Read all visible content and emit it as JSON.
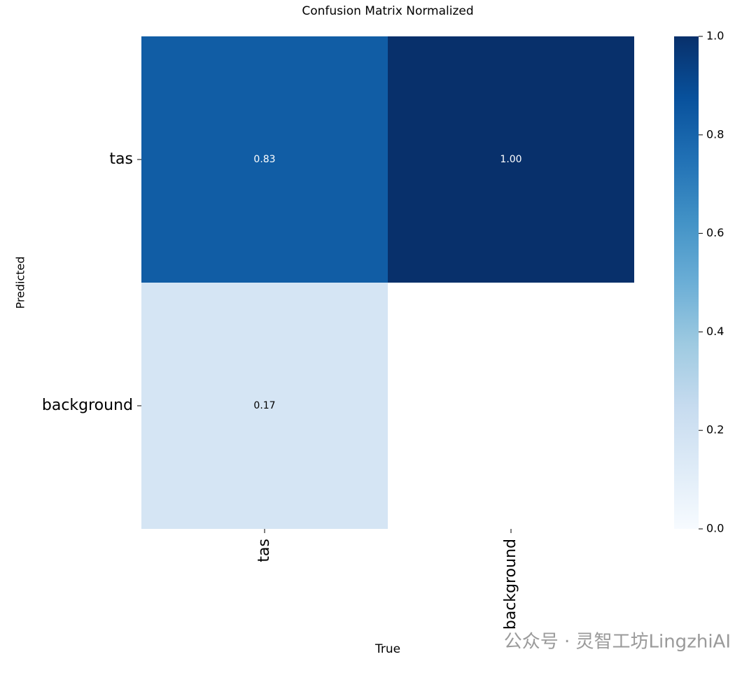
{
  "chart_data": {
    "type": "heatmap",
    "title": "Confusion Matrix Normalized",
    "x_label": "True",
    "y_label": "Predicted",
    "x_categories": [
      "tas",
      "background"
    ],
    "y_categories": [
      "tas",
      "background"
    ],
    "values": [
      [
        0.83,
        1.0
      ],
      [
        0.17,
        null
      ]
    ],
    "value_labels": [
      [
        "0.83",
        "1.00"
      ],
      [
        "0.17",
        null
      ]
    ],
    "colormap": "Blues",
    "clim": [
      0,
      1
    ],
    "cticks": [
      {
        "value": 0,
        "label": "0.0"
      },
      0.2,
      0.4,
      0.6,
      0.8,
      {
        "value": 1,
        "label": "1.0"
      }
    ],
    "watermark": "公众号 · 灵智工坊LingzhiAI"
  }
}
